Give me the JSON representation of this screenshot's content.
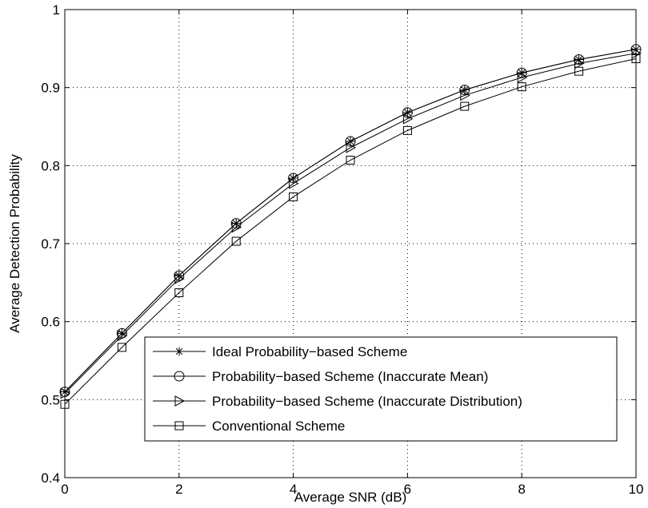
{
  "chart_data": {
    "type": "line",
    "title": "",
    "xlabel": "Average SNR (dB)",
    "ylabel": "Average Detection Probability",
    "xlim": [
      0,
      10
    ],
    "ylim": [
      0.4,
      1
    ],
    "xticks": [
      0,
      2,
      4,
      6,
      8,
      10
    ],
    "yticks": [
      0.4,
      0.5,
      0.6,
      0.7,
      0.8,
      0.9,
      1
    ],
    "xtick_labels": [
      "0",
      "2",
      "4",
      "6",
      "8",
      "10"
    ],
    "ytick_labels": [
      "0.4",
      "0.5",
      "0.6",
      "0.7",
      "0.8",
      "0.9",
      "1"
    ],
    "grid": true,
    "legend_position": "bottom-right",
    "x": [
      0,
      1,
      2,
      3,
      4,
      5,
      6,
      7,
      8,
      9,
      10
    ],
    "series": [
      {
        "name": "Ideal Probability−based Scheme",
        "marker": "asterisk",
        "values": [
          0.51,
          0.585,
          0.659,
          0.726,
          0.784,
          0.831,
          0.868,
          0.897,
          0.919,
          0.936,
          0.949
        ]
      },
      {
        "name": "Probability−based Scheme (Inaccurate Mean)",
        "marker": "circle",
        "values": [
          0.51,
          0.585,
          0.659,
          0.726,
          0.784,
          0.831,
          0.868,
          0.897,
          0.919,
          0.936,
          0.949
        ]
      },
      {
        "name": "Probability−based Scheme (Inaccurate Distribution)",
        "marker": "triangle-right",
        "values": [
          0.508,
          0.582,
          0.655,
          0.721,
          0.777,
          0.823,
          0.86,
          0.89,
          0.913,
          0.931,
          0.944
        ]
      },
      {
        "name": "Conventional Scheme",
        "marker": "square",
        "values": [
          0.494,
          0.567,
          0.637,
          0.703,
          0.76,
          0.807,
          0.845,
          0.876,
          0.901,
          0.921,
          0.937
        ]
      }
    ],
    "line_color": "#000000",
    "background_color": "#ffffff"
  }
}
